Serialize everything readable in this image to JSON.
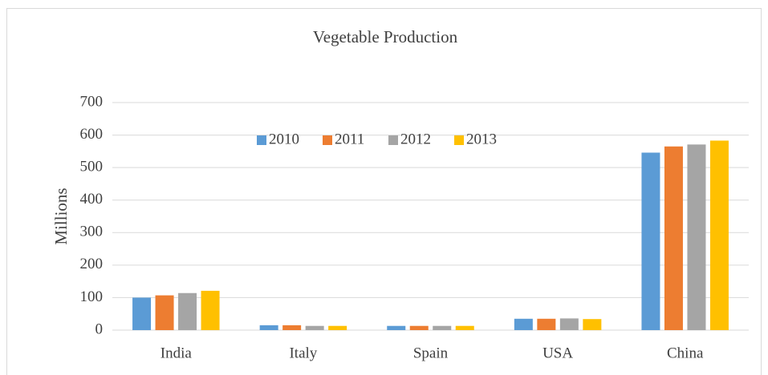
{
  "chart_data": {
    "type": "bar",
    "title": "Vegetable Production",
    "y_label": "Millions",
    "categories": [
      "India",
      "Italy",
      "Spain",
      "USA",
      "China"
    ],
    "series": [
      {
        "name": "2010",
        "color": "#5b9bd5",
        "values": [
          100,
          15,
          13,
          35,
          546
        ]
      },
      {
        "name": "2011",
        "color": "#ed7d31",
        "values": [
          107,
          15,
          13,
          35,
          565
        ]
      },
      {
        "name": "2012",
        "color": "#a5a5a5",
        "values": [
          114,
          13,
          13,
          36,
          571
        ]
      },
      {
        "name": "2013",
        "color": "#ffc000",
        "values": [
          121,
          13,
          13,
          34,
          583
        ]
      }
    ],
    "ylim": [
      0,
      700
    ],
    "yticks": [
      0,
      100,
      200,
      300,
      400,
      500,
      600,
      700
    ],
    "grid": true,
    "legend": "top"
  }
}
